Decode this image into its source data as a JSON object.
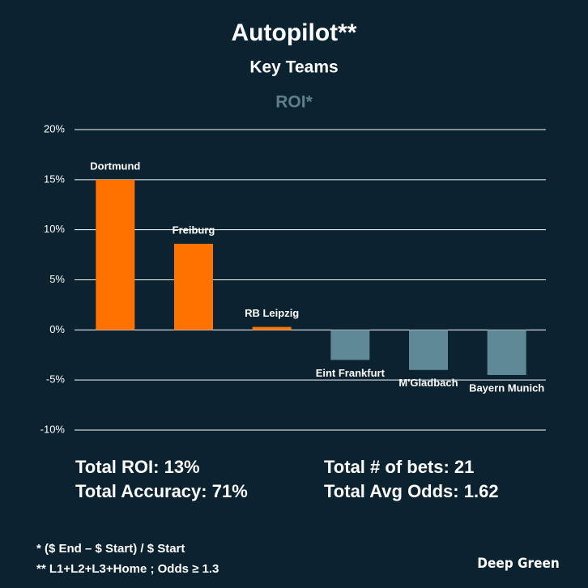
{
  "chart_data": {
    "type": "bar",
    "title": "Autopilot**",
    "subtitle": "Key Teams",
    "metric": "ROI*",
    "categories": [
      "Dortmund",
      "Freiburg",
      "RB Leipzig",
      "Eint Frankfurt",
      "M'Gladbach",
      "Bayern Munich"
    ],
    "values": [
      15,
      8.6,
      0.3,
      -3,
      -4,
      -4.5
    ],
    "colors": [
      "#ff7200",
      "#ff7200",
      "#ff7200",
      "#5f8996",
      "#5f8996",
      "#5f8996"
    ],
    "ylim": [
      -10,
      20
    ],
    "yticks": [
      {
        "value": -10,
        "label": "-10%"
      },
      {
        "value": -5,
        "label": "-5%"
      },
      {
        "value": 0,
        "label": "0%"
      },
      {
        "value": 5,
        "label": "5%"
      },
      {
        "value": 10,
        "label": "10%"
      },
      {
        "value": 15,
        "label": "15%"
      },
      {
        "value": 20,
        "label": "20%"
      }
    ],
    "grid": true
  },
  "stats": [
    "Total ROI: 13%",
    "Total Accuracy: 71%",
    "Total # of bets: 21",
    "Total Avg Odds: 1.62"
  ],
  "footnotes": [
    "* ($ End – $ Start) / $ Start",
    "** L1+L2+L3+Home ; Odds ≥ 1.3"
  ],
  "brand": "Deep Green"
}
